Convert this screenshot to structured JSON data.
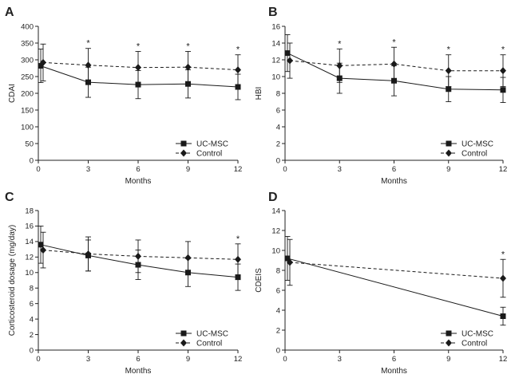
{
  "chart_data": [
    {
      "panel": "A",
      "type": "line",
      "xlabel": "Months",
      "ylabel": "CDAI",
      "xlim": [
        0,
        12
      ],
      "ylim": [
        0,
        400
      ],
      "xticks": [
        "0",
        "3",
        "6",
        "9",
        "12"
      ],
      "yticks": [
        "0",
        "50",
        "100",
        "150",
        "200",
        "250",
        "300",
        "350",
        "400"
      ],
      "legend_position": "bottom-right",
      "series": [
        {
          "name": "UC-MSC",
          "style": "solid",
          "marker": "square",
          "x": [
            0,
            3,
            6,
            9,
            12
          ],
          "values": [
            282,
            233,
            226,
            228,
            219
          ],
          "error": [
            50,
            45,
            42,
            42,
            38
          ]
        },
        {
          "name": "Control",
          "style": "dashed",
          "marker": "diamond",
          "x": [
            0,
            3,
            6,
            9,
            12
          ],
          "values": [
            292,
            284,
            277,
            278,
            270
          ],
          "error": [
            55,
            50,
            48,
            47,
            45
          ]
        }
      ],
      "significance": [
        {
          "x": 3,
          "label": "*"
        },
        {
          "x": 6,
          "label": "*"
        },
        {
          "x": 9,
          "label": "*"
        },
        {
          "x": 12,
          "label": "*"
        }
      ]
    },
    {
      "panel": "B",
      "type": "line",
      "xlabel": "Months",
      "ylabel": "HBI",
      "xlim": [
        0,
        12
      ],
      "ylim": [
        0,
        16
      ],
      "xticks": [
        "0",
        "3",
        "6",
        "9",
        "12"
      ],
      "yticks": [
        "0",
        "2",
        "4",
        "6",
        "8",
        "10",
        "12",
        "14",
        "16"
      ],
      "legend_position": "bottom-right",
      "series": [
        {
          "name": "UC-MSC",
          "style": "solid",
          "marker": "square",
          "x": [
            0,
            3,
            6,
            9,
            12
          ],
          "values": [
            12.8,
            9.8,
            9.5,
            8.5,
            8.4
          ],
          "error": [
            2.2,
            1.8,
            1.8,
            1.5,
            1.5
          ]
        },
        {
          "name": "Control",
          "style": "dashed",
          "marker": "diamond",
          "x": [
            0,
            3,
            6,
            9,
            12
          ],
          "values": [
            11.9,
            11.3,
            11.5,
            10.7,
            10.7
          ],
          "error": [
            2.1,
            2.0,
            2.0,
            1.9,
            1.9
          ]
        }
      ],
      "significance": [
        {
          "x": 3,
          "label": "*"
        },
        {
          "x": 6,
          "label": "*"
        },
        {
          "x": 9,
          "label": "*"
        },
        {
          "x": 12,
          "label": "*"
        }
      ]
    },
    {
      "panel": "C",
      "type": "line",
      "xlabel": "Months",
      "ylabel": "Corticosteroid dosage (mg/day)",
      "xlim": [
        0,
        12
      ],
      "ylim": [
        0,
        18
      ],
      "xticks": [
        "0",
        "3",
        "6",
        "9",
        "12"
      ],
      "yticks": [
        "0",
        "2",
        "4",
        "6",
        "8",
        "10",
        "12",
        "14",
        "16",
        "18"
      ],
      "legend_position": "bottom-right",
      "series": [
        {
          "name": "UC-MSC",
          "style": "solid",
          "marker": "square",
          "x": [
            0,
            3,
            6,
            9,
            12
          ],
          "values": [
            13.6,
            12.2,
            11.0,
            10.0,
            9.4
          ],
          "error": [
            2.4,
            2.0,
            1.9,
            1.8,
            1.7
          ]
        },
        {
          "name": "Control",
          "style": "dashed",
          "marker": "diamond",
          "x": [
            0,
            3,
            6,
            9,
            12
          ],
          "values": [
            12.9,
            12.4,
            12.1,
            11.9,
            11.7
          ],
          "error": [
            2.3,
            2.2,
            2.1,
            2.1,
            2.0
          ]
        }
      ],
      "significance": [
        {
          "x": 12,
          "label": "*"
        }
      ]
    },
    {
      "panel": "D",
      "type": "line",
      "xlabel": "Months",
      "ylabel": "CDEIS",
      "xlim": [
        0,
        12
      ],
      "ylim": [
        0,
        14
      ],
      "xticks": [
        "0",
        "3",
        "6",
        "9",
        "12"
      ],
      "yticks": [
        "0",
        "2",
        "4",
        "6",
        "8",
        "10",
        "12",
        "14"
      ],
      "legend_position": "bottom-right",
      "series": [
        {
          "name": "UC-MSC",
          "style": "solid",
          "marker": "square",
          "x": [
            0,
            12
          ],
          "values": [
            9.2,
            3.4
          ],
          "error": [
            2.2,
            0.9
          ]
        },
        {
          "name": "Control",
          "style": "dashed",
          "marker": "diamond",
          "x": [
            0,
            12
          ],
          "values": [
            8.8,
            7.2
          ],
          "error": [
            2.3,
            1.9
          ]
        }
      ],
      "significance": [
        {
          "x": 12,
          "label": "*"
        }
      ]
    }
  ]
}
